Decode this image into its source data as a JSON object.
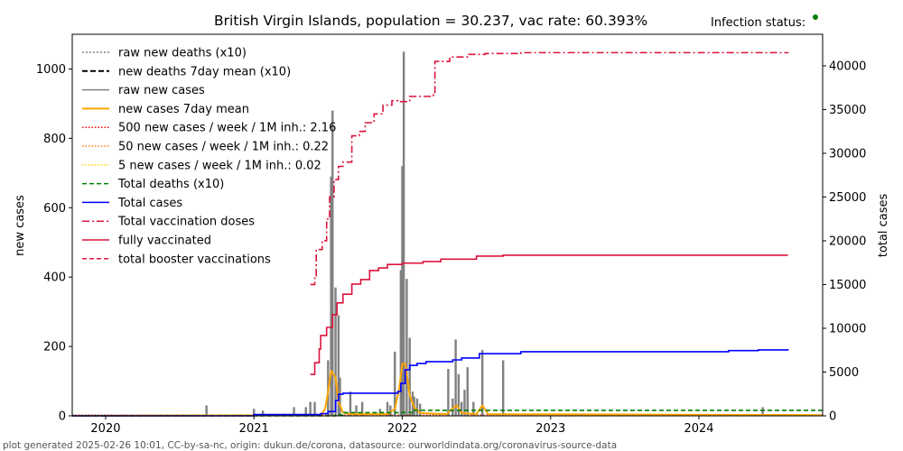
{
  "title": "British Virgin Islands, population = 30.237, vac rate: 60.393%",
  "infection_status_label": "Infection status:",
  "infection_status_color": "#008000",
  "footer": "plot generated 2025-02-26 10:01, CC-by-sa-nc, origin: dukun.de/corona, datasource: ourworldindata.org/coronavirus-source-data",
  "chart_data": {
    "type": "line",
    "title": "British Virgin Islands, population = 30.237, vac rate: 60.393%",
    "xlabel": "",
    "ylabel": "new cases",
    "ylabel_right": "total cases",
    "xlim": [
      2019.775,
      2024.834
    ],
    "ylim": [
      0,
      1100
    ],
    "ylim_right": [
      0,
      43600
    ],
    "x_ticks": [
      {
        "v": 2020,
        "label": "2020"
      },
      {
        "v": 2021,
        "label": "2021"
      },
      {
        "v": 2022,
        "label": "2022"
      },
      {
        "v": 2023,
        "label": "2023"
      },
      {
        "v": 2024,
        "label": "2024"
      }
    ],
    "y_ticks": [
      {
        "v": 0,
        "label": "0"
      },
      {
        "v": 200,
        "label": "200"
      },
      {
        "v": 400,
        "label": "400"
      },
      {
        "v": 600,
        "label": "600"
      },
      {
        "v": 800,
        "label": "800"
      },
      {
        "v": 1000,
        "label": "1000"
      }
    ],
    "y_ticks_right": [
      {
        "v": 0,
        "label": "0"
      },
      {
        "v": 5000,
        "label": "5000"
      },
      {
        "v": 10000,
        "label": "10000"
      },
      {
        "v": 15000,
        "label": "15000"
      },
      {
        "v": 20000,
        "label": "20000"
      },
      {
        "v": 25000,
        "label": "25000"
      },
      {
        "v": 30000,
        "label": "30000"
      },
      {
        "v": 35000,
        "label": "35000"
      },
      {
        "v": 40000,
        "label": "40000"
      }
    ],
    "legend_position": "top-left",
    "legend": [
      {
        "label": "raw new deaths (x10)",
        "color": "#808080",
        "dash": "2,2",
        "width": 1.5
      },
      {
        "label": "new deaths 7day mean (x10)",
        "color": "#000000",
        "dash": "6,3",
        "width": 2
      },
      {
        "label": "raw new cases",
        "color": "#808080",
        "dash": "",
        "width": 1.5
      },
      {
        "label": "new cases 7day mean",
        "color": "#ffa500",
        "dash": "",
        "width": 2
      },
      {
        "label": "500 new cases / week / 1M inh.: 2.16",
        "color": "#ff0000",
        "dash": "1.5,2",
        "width": 1.5
      },
      {
        "label": "50 new cases / week / 1M inh.: 0.22",
        "color": "#ff7f0e",
        "dash": "1.5,2",
        "width": 1.5
      },
      {
        "label": "5 new cases / week / 1M inh.: 0.02",
        "color": "#ffd700",
        "dash": "1.5,2",
        "width": 1.5
      },
      {
        "label": "Total deaths (x10)",
        "color": "#008000",
        "dash": "5,3",
        "width": 1.5
      },
      {
        "label": "Total cases",
        "color": "#0000ff",
        "dash": "",
        "width": 1.5
      },
      {
        "label": "Total vaccination doses",
        "color": "#dc143c",
        "dash": "8,3,2,3",
        "width": 1.5
      },
      {
        "label": "fully vaccinated",
        "color": "#dc143c",
        "dash": "",
        "width": 1.5
      },
      {
        "label": "total booster vaccinations",
        "color": "#dc143c",
        "dash": "5,3",
        "width": 1.5
      }
    ],
    "raw_new_cases": {
      "x": [
        2020.68,
        2021.0,
        2021.06,
        2021.27,
        2021.35,
        2021.38,
        2021.41,
        2021.5,
        2021.52,
        2021.53,
        2021.55,
        2021.57,
        2021.58,
        2021.65,
        2021.69,
        2021.73,
        2021.85,
        2021.9,
        2021.92,
        2021.95,
        2021.99,
        2022.0,
        2022.01,
        2022.03,
        2022.05,
        2022.07,
        2022.08,
        2022.1,
        2022.12,
        2022.31,
        2022.34,
        2022.36,
        2022.38,
        2022.4,
        2022.42,
        2022.44,
        2022.48,
        2022.54,
        2022.68,
        2024.43
      ],
      "y": [
        30,
        20,
        15,
        25,
        25,
        40,
        40,
        160,
        690,
        880,
        370,
        290,
        110,
        70,
        30,
        40,
        20,
        40,
        30,
        185,
        420,
        720,
        1050,
        395,
        225,
        70,
        55,
        50,
        35,
        135,
        50,
        220,
        120,
        40,
        75,
        140,
        40,
        190,
        160,
        25
      ]
    },
    "new_cases_7day_mean": {
      "x": [
        2019.8,
        2021.45,
        2021.48,
        2021.5,
        2021.52,
        2021.55,
        2021.57,
        2021.6,
        2021.65,
        2021.9,
        2021.95,
        2021.98,
        2022.0,
        2022.02,
        2022.05,
        2022.08,
        2022.12,
        2022.3,
        2022.35,
        2022.37,
        2022.4,
        2022.5,
        2022.54,
        2022.58,
        2024.834
      ],
      "y": [
        0,
        2,
        20,
        70,
        130,
        110,
        40,
        10,
        5,
        5,
        20,
        80,
        150,
        150,
        60,
        25,
        8,
        5,
        25,
        30,
        8,
        5,
        30,
        5,
        2
      ]
    },
    "total_deaths_x10": {
      "x": [
        2019.775,
        2021.5,
        2021.55,
        2021.6,
        2022.0,
        2022.08,
        2024.834
      ],
      "y": [
        0,
        0,
        100,
        370,
        380,
        620,
        620
      ]
    },
    "total_cases": {
      "x": [
        2019.775,
        2021.0,
        2021.45,
        2021.5,
        2021.55,
        2021.57,
        2021.6,
        2021.97,
        2021.99,
        2022.02,
        2022.05,
        2022.1,
        2022.16,
        2022.34,
        2022.4,
        2022.52,
        2022.8,
        2023.4,
        2024.2,
        2024.4,
        2024.6
      ],
      "y": [
        0,
        150,
        250,
        500,
        1750,
        2470,
        2580,
        2780,
        3700,
        5260,
        5770,
        5980,
        6190,
        6390,
        6600,
        7110,
        7320,
        7320,
        7450,
        7530,
        7630
      ]
    },
    "total_vaccination_doses": {
      "x": [
        2021.38,
        2021.41,
        2021.42,
        2021.46,
        2021.49,
        2021.51,
        2021.54,
        2021.57,
        2021.6,
        2021.66,
        2021.71,
        2021.75,
        2021.81,
        2021.87,
        2021.93,
        2021.97,
        2022.05,
        2022.12,
        2022.21,
        2022.22,
        2022.32,
        2022.44,
        2022.56,
        2022.8,
        2024.6
      ],
      "y": [
        15000,
        16000,
        19000,
        20000,
        22500,
        25000,
        27000,
        28500,
        29000,
        32000,
        32500,
        33500,
        34500,
        35500,
        36000,
        35900,
        36500,
        36500,
        36700,
        40500,
        41000,
        41300,
        41400,
        41500,
        41550
      ]
    },
    "fully_vaccinated": {
      "x": [
        2021.38,
        2021.41,
        2021.44,
        2021.45,
        2021.49,
        2021.53,
        2021.56,
        2021.6,
        2021.66,
        2021.72,
        2021.78,
        2021.84,
        2021.9,
        2022.0,
        2022.14,
        2022.26,
        2022.5,
        2022.68,
        2024.6
      ],
      "y": [
        4740,
        6080,
        7630,
        9180,
        10100,
        11550,
        12900,
        13900,
        15050,
        15570,
        16600,
        16900,
        17300,
        17450,
        17630,
        17900,
        18250,
        18350,
        18350
      ]
    }
  }
}
